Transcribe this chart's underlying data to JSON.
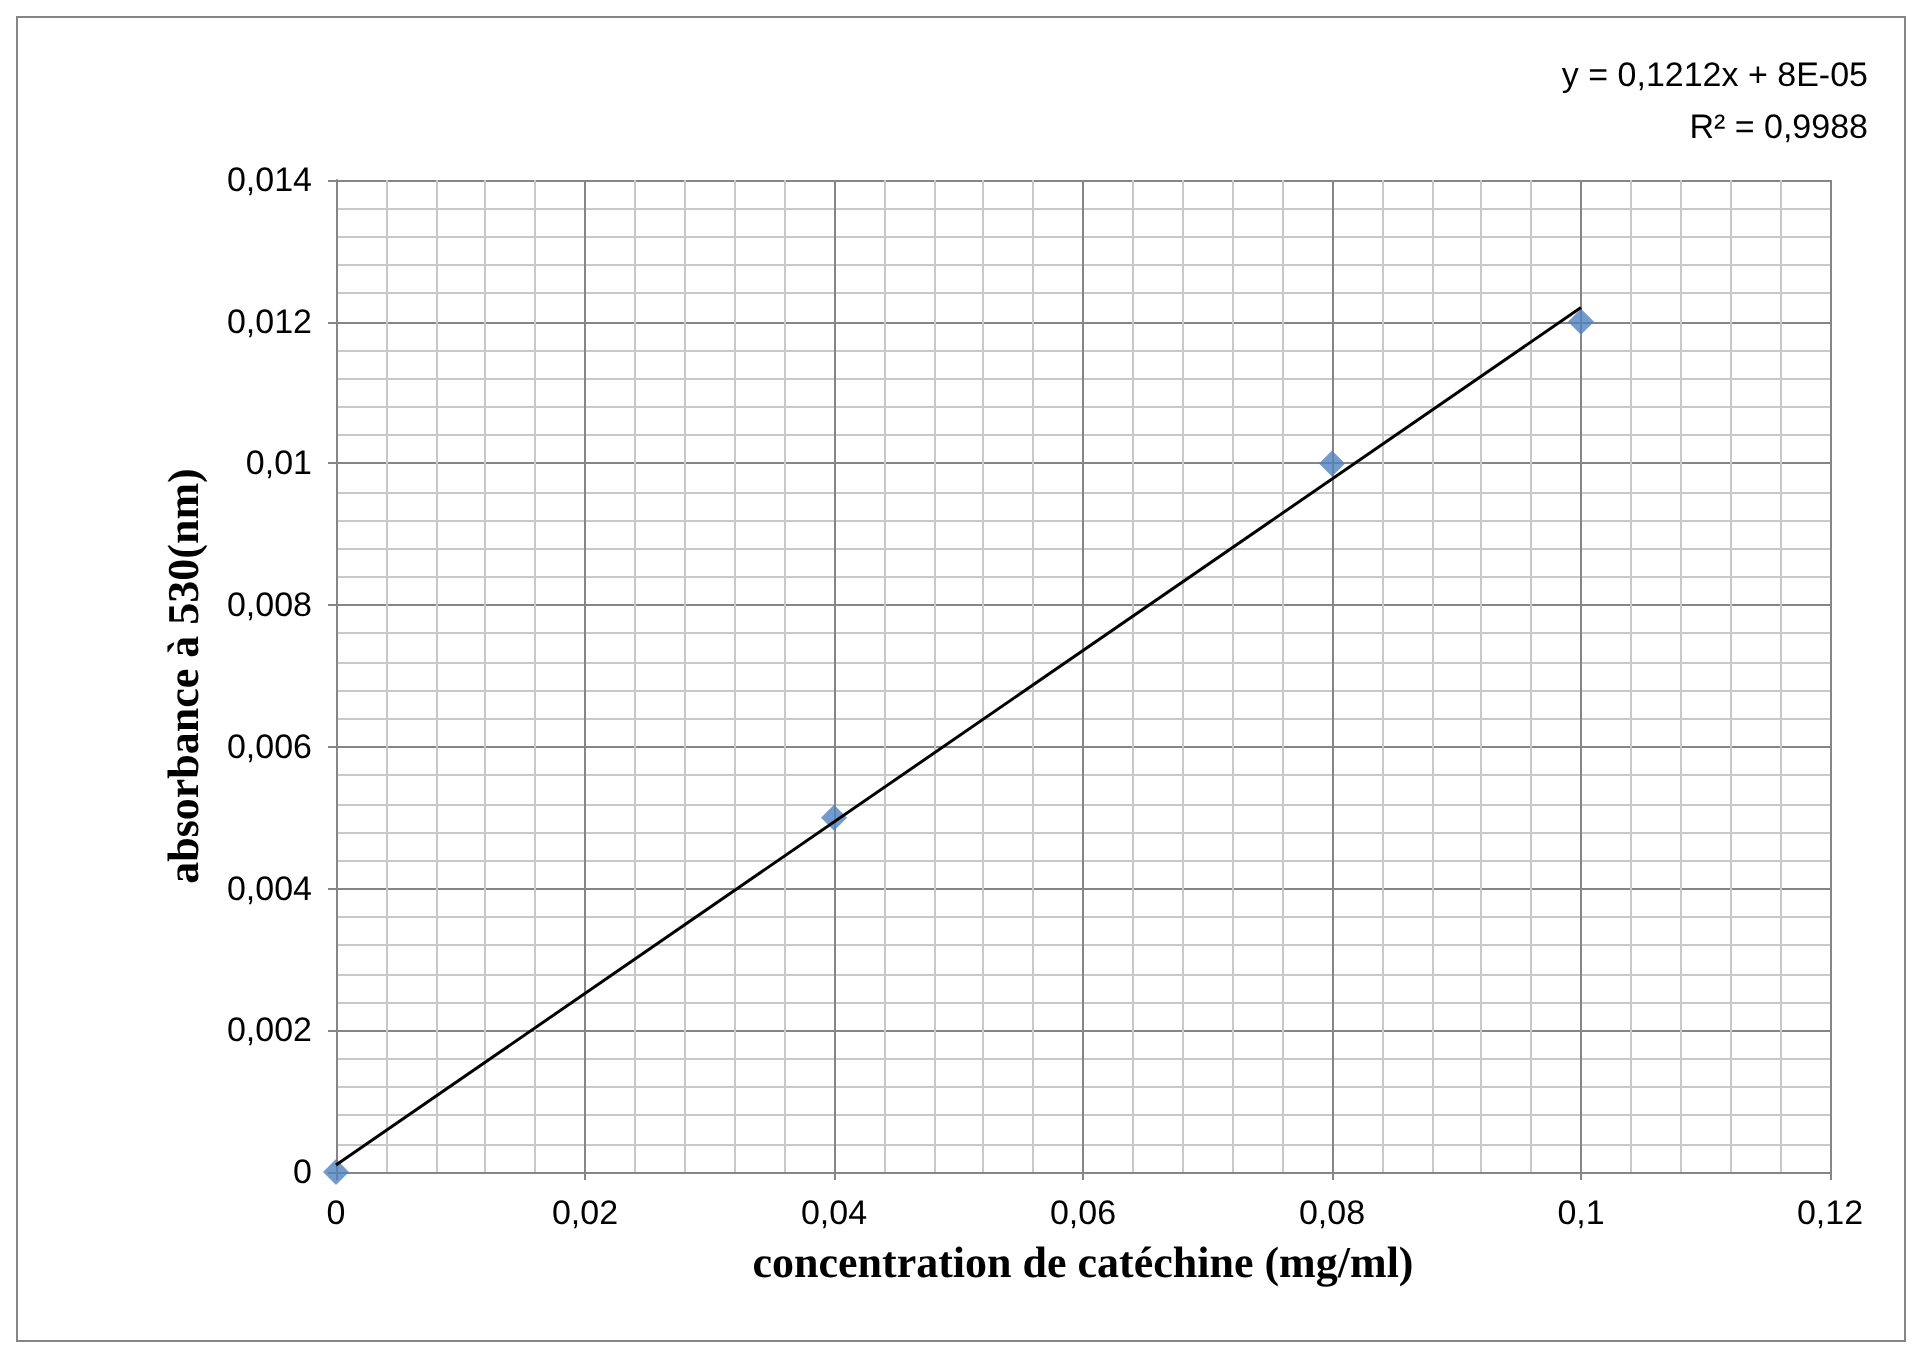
{
  "chart_data": {
    "type": "scatter",
    "xlabel": "concentration de catéchine (mg/ml)",
    "ylabel": "absorbance à 530(nm)",
    "annotations": [
      "y = 0,1212x + 8E-05",
      "R² = 0,9988"
    ],
    "x": [
      0,
      0.04,
      0.08,
      0.1
    ],
    "series": [
      {
        "color": "#4f81bd",
        "values": [
          0,
          0.005,
          0.01,
          0.012
        ],
        "marker": "diamond"
      },
      {
        "type": "line",
        "color": "#000000",
        "x": [
          0,
          0.1
        ],
        "values": [
          0.0001,
          0.0122
        ],
        "marker": "none"
      }
    ],
    "xlim": [
      0,
      0.12
    ],
    "ylim": [
      0,
      0.014
    ],
    "xticks": [
      0,
      {
        "value": 0.02,
        "label": "0,02"
      },
      {
        "value": 0.04,
        "label": "0,04"
      },
      {
        "value": 0.06,
        "label": "0,06"
      },
      {
        "value": 0.08,
        "label": "0,08"
      },
      {
        "value": 0.1,
        "label": "0,1"
      },
      {
        "value": 0.12,
        "label": "0,12"
      }
    ],
    "yticks": [
      0,
      {
        "value": 0.002,
        "label": "0,002"
      },
      {
        "value": 0.004,
        "label": "0,004"
      },
      {
        "value": 0.006,
        "label": "0,006"
      },
      {
        "value": 0.008,
        "label": "0,008"
      },
      {
        "value": 0.01,
        "label": "0,01"
      },
      {
        "value": 0.012,
        "label": "0,012"
      },
      {
        "value": 0.014,
        "label": "0,014"
      }
    ],
    "grid": true
  }
}
